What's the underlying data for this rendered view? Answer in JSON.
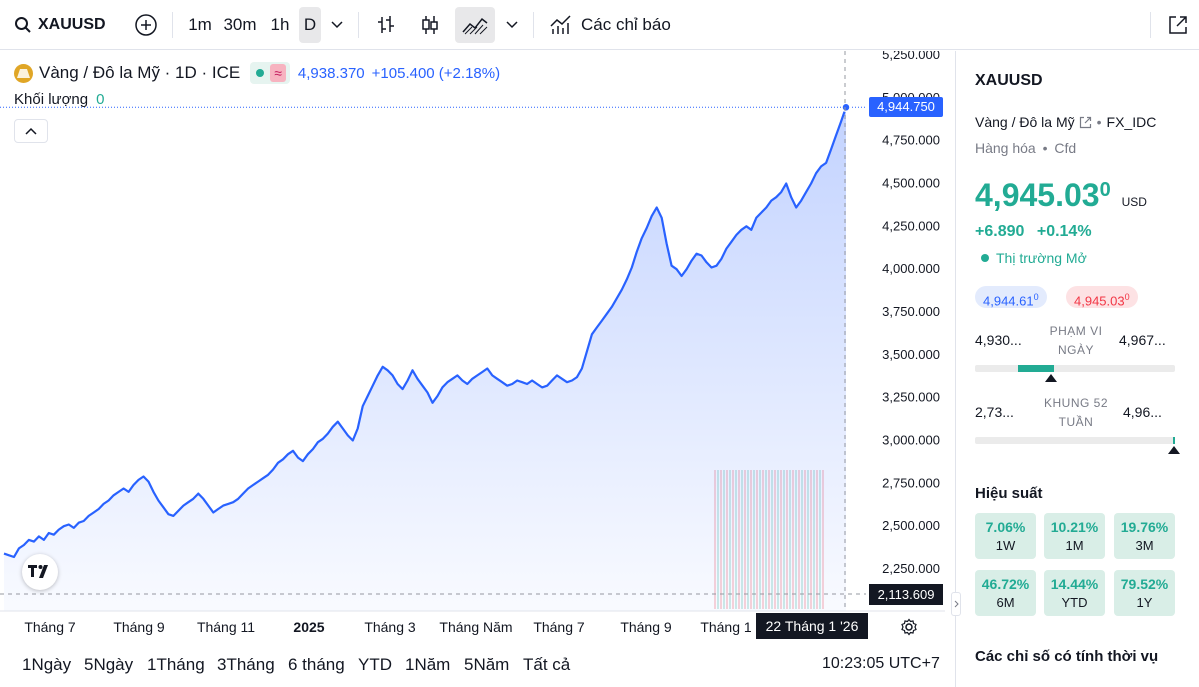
{
  "toolbar": {
    "symbol": "XAUUSD",
    "intervals": [
      "1m",
      "30m",
      "1h",
      "D"
    ],
    "indicators_label": "Các chỉ báo"
  },
  "legend": {
    "title": "Vàng / Đô la Mỹ · 1D · ICE",
    "badge_symbol": "≈",
    "last_price": "4,938.370",
    "change": "+105.400 (+2.18%)",
    "volume_label": "Khối lượng",
    "volume_value": "0"
  },
  "chart_data": {
    "type": "area",
    "x_labels": [
      "Tháng 7",
      "Tháng 9",
      "Tháng 11",
      "2025",
      "Tháng 3",
      "Tháng Năm",
      "Tháng 7",
      "Tháng 9",
      "Tháng 1"
    ],
    "y_ticks": [
      "5,250.000",
      "5,000.000",
      "4,750.000",
      "4,500.000",
      "4,250.000",
      "4,000.000",
      "3,750.000",
      "3,500.000",
      "3,250.000",
      "3,000.000",
      "2,750.000",
      "2,500.000",
      "2,250.000"
    ],
    "ylim": [
      2100,
      5300
    ],
    "series": [
      {
        "values": [
          2340,
          2330,
          2320,
          2370,
          2390,
          2420,
          2410,
          2440,
          2420,
          2460,
          2450,
          2480,
          2500,
          2510,
          2490,
          2520,
          2530,
          2560,
          2580,
          2600,
          2630,
          2650,
          2680,
          2700,
          2720,
          2700,
          2740,
          2770,
          2790,
          2760,
          2700,
          2650,
          2610,
          2570,
          2560,
          2590,
          2620,
          2640,
          2660,
          2690,
          2660,
          2620,
          2580,
          2600,
          2620,
          2630,
          2640,
          2660,
          2690,
          2720,
          2740,
          2760,
          2780,
          2800,
          2830,
          2870,
          2890,
          2920,
          2940,
          2900,
          2880,
          2920,
          2950,
          2990,
          3010,
          3040,
          3080,
          3110,
          3070,
          3030,
          3000,
          3070,
          3200,
          3260,
          3320,
          3380,
          3430,
          3410,
          3380,
          3330,
          3300,
          3350,
          3410,
          3360,
          3320,
          3280,
          3220,
          3260,
          3310,
          3340,
          3360,
          3380,
          3350,
          3330,
          3360,
          3380,
          3400,
          3420,
          3380,
          3360,
          3340,
          3320,
          3330,
          3350,
          3340,
          3330,
          3350,
          3330,
          3310,
          3320,
          3350,
          3380,
          3360,
          3340,
          3350,
          3370,
          3420,
          3520,
          3620,
          3660,
          3700,
          3740,
          3780,
          3830,
          3880,
          3940,
          4010,
          4100,
          4180,
          4240,
          4310,
          4360,
          4300,
          4150,
          4020,
          4000,
          3960,
          4000,
          4050,
          4090,
          4080,
          4040,
          4010,
          4020,
          4060,
          4120,
          4160,
          4200,
          4230,
          4250,
          4230,
          4300,
          4330,
          4360,
          4400,
          4420,
          4450,
          4500,
          4420,
          4360,
          4400,
          4450,
          4500,
          4560,
          4600,
          4620,
          4700,
          4780,
          4860,
          4944.75
        ],
        "color": "#2962ff"
      }
    ]
  },
  "axis_labels": {
    "last_value_tag": "4,944.750",
    "crosshair_value_tag": "2,113.609",
    "crosshair_date_tag": "22 Tháng 1 '26"
  },
  "bottom_bar": {
    "ranges": [
      "1Ngày",
      "5Ngày",
      "1Tháng",
      "3Tháng",
      "6 tháng",
      "YTD",
      "1Năm",
      "5Năm",
      "Tất cả"
    ],
    "clock": "10:23:05 UTC+7"
  },
  "side": {
    "symbol": "XAUUSD",
    "name": "Vàng / Đô la Mỹ",
    "exchange": "FX_IDC",
    "category": "Hàng hóa",
    "instrument": "Cfd",
    "price": "4,945.03",
    "price_sup": "0",
    "currency": "USD",
    "change_abs": "+6.890",
    "change_pct": "+0.14%",
    "market_status": "Thị trường Mở",
    "bid": "4,944.61",
    "bid_sup": "0",
    "ask": "4,945.03",
    "ask_sup": "0",
    "day_range_low": "4,930...",
    "day_range_label_1": "PHẠM VI",
    "day_range_label_2": "NGÀY",
    "day_range_high": "4,967...",
    "day_range_fraction": 0.2,
    "week52_low": "2,73...",
    "week52_label_1": "KHUNG 52",
    "week52_label_2": "TUẦN",
    "week52_high": "4,96...",
    "week52_fraction": 0.995,
    "performance_title": "Hiệu suất",
    "performance": [
      {
        "value": "7.06%",
        "label": "1W"
      },
      {
        "value": "10.21%",
        "label": "1M"
      },
      {
        "value": "19.76%",
        "label": "3M"
      },
      {
        "value": "46.72%",
        "label": "6M"
      },
      {
        "value": "14.44%",
        "label": "YTD"
      },
      {
        "value": "79.52%",
        "label": "1Y"
      }
    ],
    "seasonal_title": "Các chỉ số có tính thời vụ"
  },
  "colors": {
    "line": "#2962ff",
    "positive": "#22ab94",
    "negative": "#f23645",
    "price_tag": "#2962ff"
  }
}
